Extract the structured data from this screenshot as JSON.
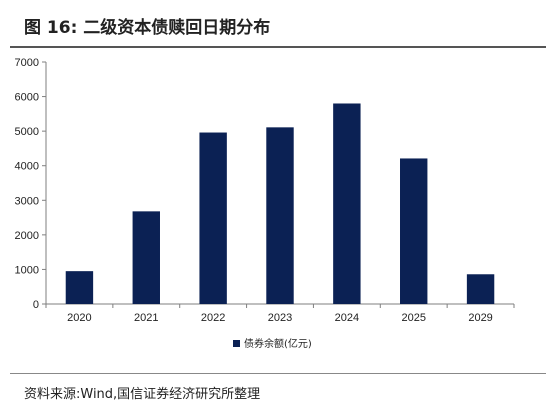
{
  "header": {
    "title": "图 16:  二级资本债赎回日期分布"
  },
  "source": {
    "text": "资料来源:Wind,国信证券经济研究所整理"
  },
  "colors": {
    "bar": "#0b2154",
    "axis": "#7f7f7f"
  },
  "chart_data": {
    "type": "bar",
    "title": "",
    "xlabel": "",
    "ylabel": "",
    "categories": [
      "2020",
      "2021",
      "2022",
      "2023",
      "2024",
      "2025",
      "2029"
    ],
    "series": [
      {
        "name": "债券余额(亿元)",
        "values": [
          950,
          2680,
          4960,
          5110,
          5800,
          4210,
          860
        ]
      }
    ],
    "ylim": [
      0,
      7000
    ],
    "yticks": [
      0,
      1000,
      2000,
      3000,
      4000,
      5000,
      6000,
      7000
    ],
    "grid": false,
    "legend_position": "bottom-center"
  }
}
